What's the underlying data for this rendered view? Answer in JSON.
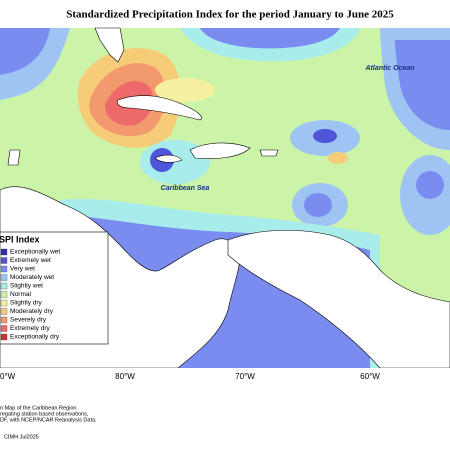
{
  "title": "Standardized Precipitation Index for the period January to June 2025",
  "map_labels": [
    "Atlantic Ocean",
    "Caribbean Sea"
  ],
  "longitude_labels": [
    "0°W",
    "80°W",
    "70°W",
    "60°W"
  ],
  "legend": {
    "title": "SPI Index",
    "items": [
      {
        "label": "Exceptionally wet",
        "color": "#2d2db4"
      },
      {
        "label": "Extremely wet",
        "color": "#4f55d8"
      },
      {
        "label": "Very wet",
        "color": "#7a8cf0"
      },
      {
        "label": "Moderately wet",
        "color": "#9ec4f4"
      },
      {
        "label": "Slightly wet",
        "color": "#a8ecec"
      },
      {
        "label": "Normal",
        "color": "#ccf4a8"
      },
      {
        "label": "Slightly dry",
        "color": "#f4f0a0"
      },
      {
        "label": "Moderately dry",
        "color": "#f6cc78"
      },
      {
        "label": "Severely dry",
        "color": "#f29a6e"
      },
      {
        "label": "Extremely dry",
        "color": "#ee6a6a"
      },
      {
        "label": "Exceptionally dry",
        "color": "#c83232"
      }
    ]
  },
  "notes": [
    "n Map of the Caribbean Region",
    "regating station based observations,",
    "DF, with NCEP/NCAR Reanalysis Data.",
    "CIMH Jul2025"
  ]
}
